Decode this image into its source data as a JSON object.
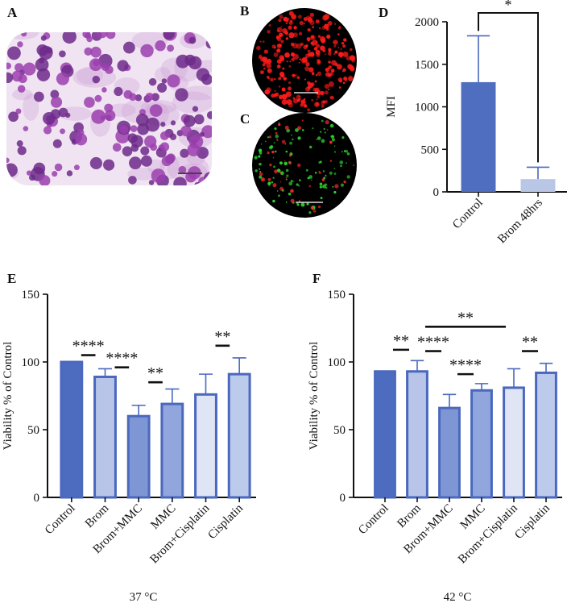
{
  "panels": {
    "a": "A",
    "b": "B",
    "c": "C",
    "d": "D",
    "e": "E",
    "f": "F"
  },
  "chart_data": [
    {
      "id": "D",
      "type": "bar",
      "categories": [
        "Control",
        "Brom 48hrs"
      ],
      "values": [
        1290,
        150
      ],
      "errors": [
        545,
        140
      ],
      "ylabel": "MFI",
      "xlabel": "",
      "ylim": [
        0,
        2000
      ],
      "yticks": [
        0,
        500,
        1000,
        1500,
        2000
      ],
      "colors": [
        "#4f6ec0",
        "#b9c6e6"
      ],
      "significance": [
        {
          "from": 0,
          "to": 1,
          "label": "*"
        }
      ]
    },
    {
      "id": "E",
      "type": "bar",
      "categories": [
        "Control",
        "Brom",
        "Brom+MMC",
        "MMC",
        "Brom+Cisplatin",
        "Cisplatin"
      ],
      "values": [
        100,
        89,
        60,
        69,
        76,
        91
      ],
      "errors": [
        0,
        6,
        8,
        11,
        15,
        12
      ],
      "ylabel": "Viability % of Control",
      "xlabel": "37 °C",
      "ylim": [
        0,
        150
      ],
      "yticks": [
        0,
        50,
        100,
        150
      ],
      "colors": [
        "#4d6cc0",
        "#b8c5e8",
        "#7f96d4",
        "#91a6dc",
        "#dfe5f5",
        "#bccaec"
      ],
      "significance": [
        {
          "from": 0,
          "to": 1,
          "label": "****",
          "level": 105
        },
        {
          "from": 1,
          "to": 2,
          "label": "****",
          "level": 96
        },
        {
          "from": 2,
          "to": 3,
          "label": "**",
          "level": 85
        },
        {
          "from": 4,
          "to": 5,
          "label": "**",
          "level": 112
        }
      ]
    },
    {
      "id": "F",
      "type": "bar",
      "categories": [
        "Control",
        "Brom",
        "Brom+MMC",
        "MMC",
        "Brom+Cisplatin",
        "Cisplatin"
      ],
      "values": [
        93,
        93,
        66,
        79,
        81,
        92
      ],
      "errors": [
        0,
        8,
        10,
        5,
        14,
        7
      ],
      "ylabel": "Viability % of Control",
      "xlabel": "42 °C",
      "ylim": [
        0,
        150
      ],
      "yticks": [
        0,
        50,
        100,
        150
      ],
      "colors": [
        "#4d6cc0",
        "#b8c5e8",
        "#7f96d4",
        "#91a6dc",
        "#dfe5f5",
        "#bccaec"
      ],
      "significance": [
        {
          "from": 0,
          "to": 1,
          "label": "**",
          "level": 109
        },
        {
          "from": 1,
          "to": 2,
          "label": "****",
          "level": 108
        },
        {
          "from": 1,
          "to": 4,
          "label": "**",
          "level": 126
        },
        {
          "from": 2,
          "to": 3,
          "label": "****",
          "level": 91
        },
        {
          "from": 4,
          "to": 5,
          "label": "**",
          "level": 108
        }
      ]
    }
  ],
  "micrographs": [
    {
      "name": "panel-a-stained-cells",
      "colors": [
        "#f0e4f2",
        "#cfa2d8",
        "#9b3fae",
        "#6d2a8a"
      ]
    },
    {
      "name": "panel-b-red-fluorescence",
      "colors": [
        "#000000",
        "#ff1a1a"
      ]
    },
    {
      "name": "panel-c-green-red-fluorescence",
      "colors": [
        "#000000",
        "#2fd62f",
        "#ff2a2a"
      ]
    }
  ]
}
